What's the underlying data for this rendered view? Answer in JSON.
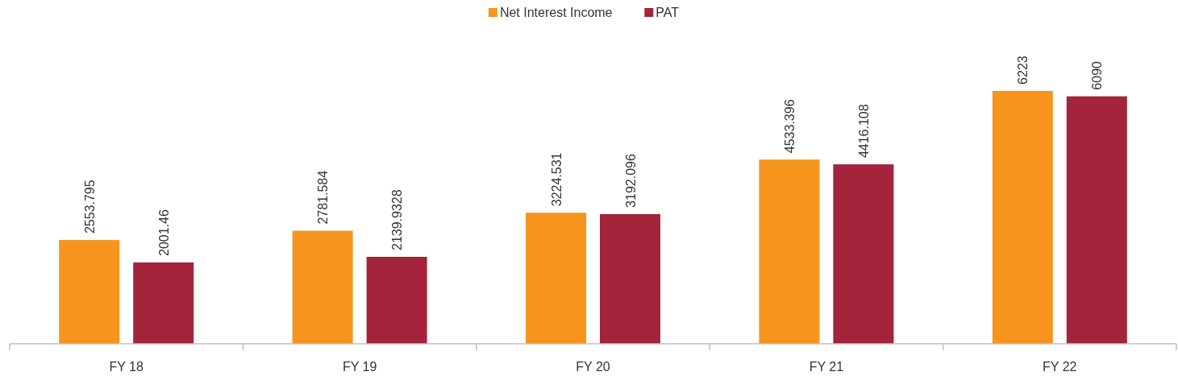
{
  "chart_data": {
    "type": "bar",
    "categories": [
      "FY 18",
      "FY 19",
      "FY 20",
      "FY 21",
      "FY 22"
    ],
    "series": [
      {
        "name": "Net Interest Income",
        "color": "#f7941d",
        "values": [
          2553.795,
          2781.584,
          3224.531,
          4533.396,
          6223
        ]
      },
      {
        "name": "PAT",
        "color": "#a3243b",
        "values": [
          2001.46,
          2139.9328,
          3192.096,
          4416.108,
          6090
        ]
      }
    ],
    "tick_labels": "x",
    "data_labels": true,
    "legend": "top"
  }
}
